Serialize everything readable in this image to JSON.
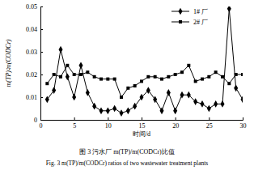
{
  "chart_data": {
    "type": "line",
    "title": "图 3 污水厂 m(TP)/m(CODCr)比值",
    "subtitle": "Fig. 3 m(TP)/m(CODCr) ratios of two wastewater treatment plants",
    "x_label": "时间/d",
    "y_label": "m(TP)∶m(CODCr)",
    "x": [
      1,
      2,
      3,
      4,
      5,
      6,
      7,
      8,
      9,
      10,
      11,
      12,
      13,
      14,
      15,
      16,
      17,
      18,
      19,
      20,
      21,
      22,
      23,
      24,
      25,
      26,
      27,
      28,
      29,
      30
    ],
    "series": [
      {
        "name": "1# 厂",
        "color": "#000000",
        "marker": "diamond",
        "values": [
          0.009,
          0.013,
          0.031,
          0.019,
          0.01,
          0.024,
          0.012,
          0.006,
          0.004,
          0.004,
          0.005,
          0.003,
          0.004,
          0.006,
          0.01,
          0.013,
          0.009,
          0.004,
          0.012,
          0.004,
          0.011,
          0.011,
          0.008,
          0.007,
          0.005,
          0.007,
          0.007,
          0.049,
          0.014,
          0.009
        ]
      },
      {
        "name": "2# 厂",
        "color": "#000000",
        "marker": "square",
        "values": [
          0.016,
          0.02,
          0.019,
          0.024,
          0.02,
          0.02,
          0.021,
          0.019,
          0.018,
          0.018,
          0.018,
          0.01,
          0.014,
          0.015,
          0.017,
          0.019,
          0.019,
          0.018,
          0.019,
          0.02,
          0.021,
          0.024,
          0.017,
          0.018,
          0.019,
          0.021,
          0.019,
          0.016,
          0.02,
          0.02
        ]
      }
    ],
    "xlim": [
      0,
      30
    ],
    "xticks": [
      0,
      5,
      10,
      15,
      20,
      25,
      30
    ],
    "ylim": [
      0,
      0.05
    ],
    "yticks": [
      0,
      0.01,
      0.02,
      0.03,
      0.04,
      0.05
    ],
    "grid": false,
    "legend": "upper right"
  }
}
